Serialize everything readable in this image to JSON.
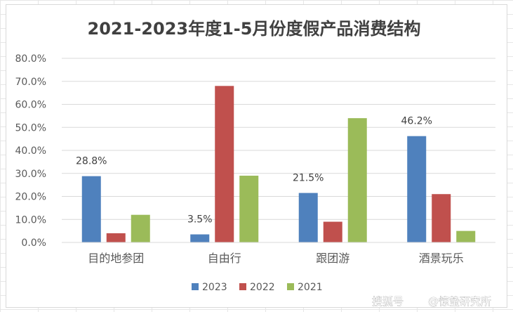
{
  "chart_data": {
    "type": "bar",
    "title": "2021-2023年度1-5月份度假产品消费结构",
    "categories": [
      "目的地参团",
      "自由行",
      "跟团游",
      "酒景玩乐"
    ],
    "series": [
      {
        "name": "2023",
        "color": "#4f81bd",
        "values": [
          28.8,
          3.5,
          21.5,
          46.2
        ]
      },
      {
        "name": "2022",
        "color": "#c0504d",
        "values": [
          4.0,
          68.0,
          9.0,
          21.0
        ]
      },
      {
        "name": "2021",
        "color": "#9bbb59",
        "values": [
          12.0,
          29.0,
          54.0,
          5.0
        ]
      }
    ],
    "data_labels": [
      {
        "series": 0,
        "category": 0,
        "text": "28.8%"
      },
      {
        "series": 0,
        "category": 1,
        "text": "3.5%"
      },
      {
        "series": 0,
        "category": 2,
        "text": "21.5%"
      },
      {
        "series": 0,
        "category": 3,
        "text": "46.2%"
      }
    ],
    "y_ticks": [
      "0.0%",
      "10.0%",
      "20.0%",
      "30.0%",
      "40.0%",
      "50.0%",
      "60.0%",
      "70.0%",
      "80.0%"
    ],
    "ylim": [
      0,
      80
    ],
    "grid": true,
    "legend_position": "bottom"
  },
  "watermark": {
    "left": "搜狐号",
    "right": "@惊蛰研究所"
  }
}
